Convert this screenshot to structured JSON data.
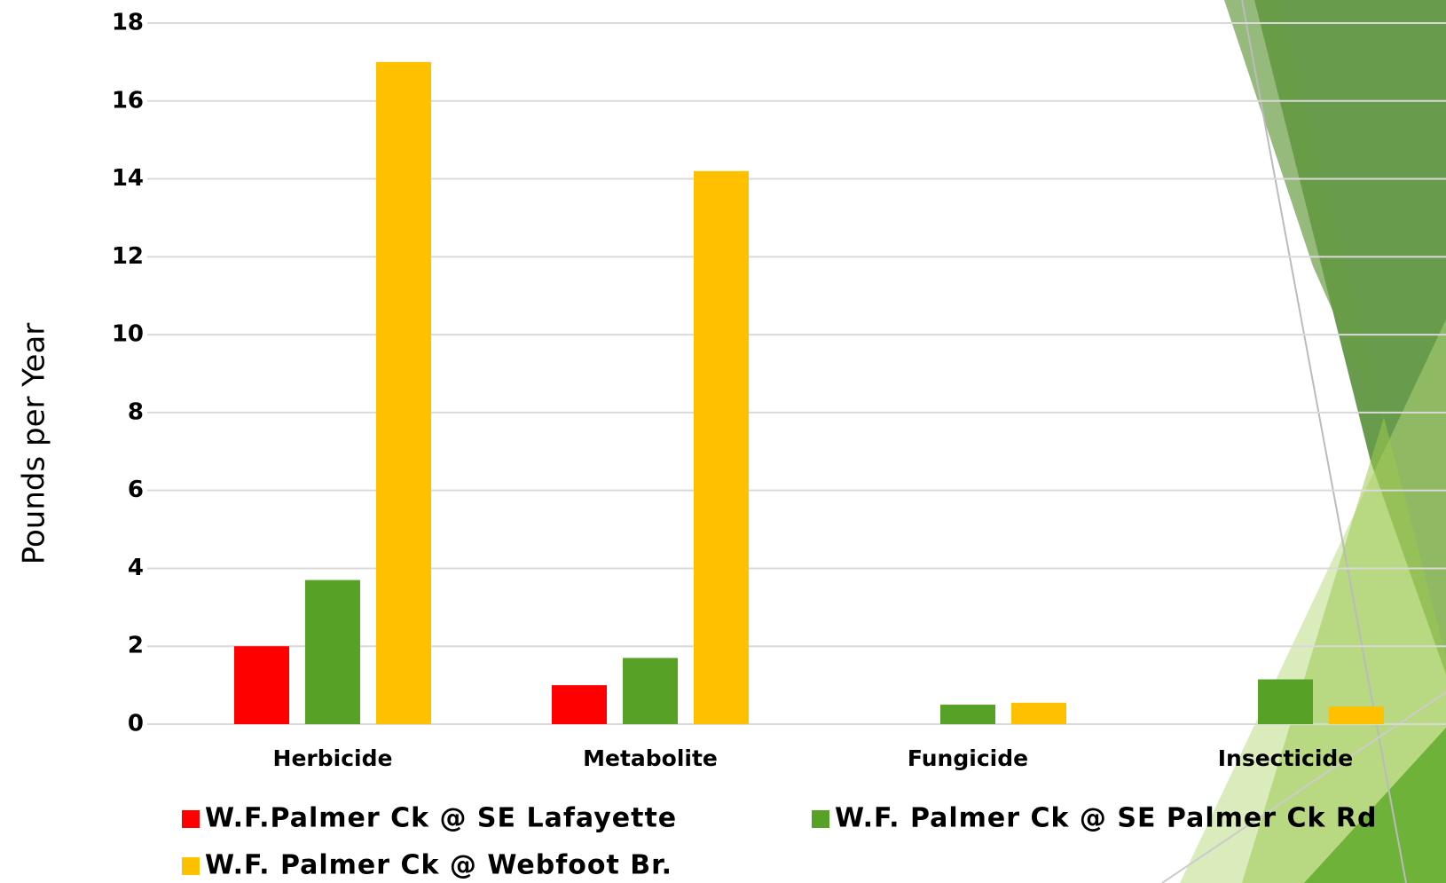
{
  "chart_data": {
    "type": "bar",
    "y_label": "Pounds per Year",
    "categories": [
      "Herbicide",
      "Metabolite",
      "Fungicide",
      "Insecticide"
    ],
    "series": [
      {
        "name": "W.F.Palmer Ck @ SE Lafayette",
        "color": "#ff0000",
        "values": [
          2.0,
          1.0,
          null,
          null
        ]
      },
      {
        "name": "W.F. Palmer Ck @ SE Palmer Ck Rd",
        "color": "#57a226",
        "values": [
          3.7,
          1.7,
          0.5,
          1.15
        ]
      },
      {
        "name": "W.F. Palmer Ck @ Webfoot Br.",
        "color": "#ffc000",
        "values": [
          17.0,
          14.2,
          0.55,
          0.45
        ]
      }
    ],
    "ylim": [
      0,
      18
    ],
    "yticks": [
      0,
      2,
      4,
      6,
      8,
      10,
      12,
      14,
      16,
      18
    ],
    "grid": true
  }
}
